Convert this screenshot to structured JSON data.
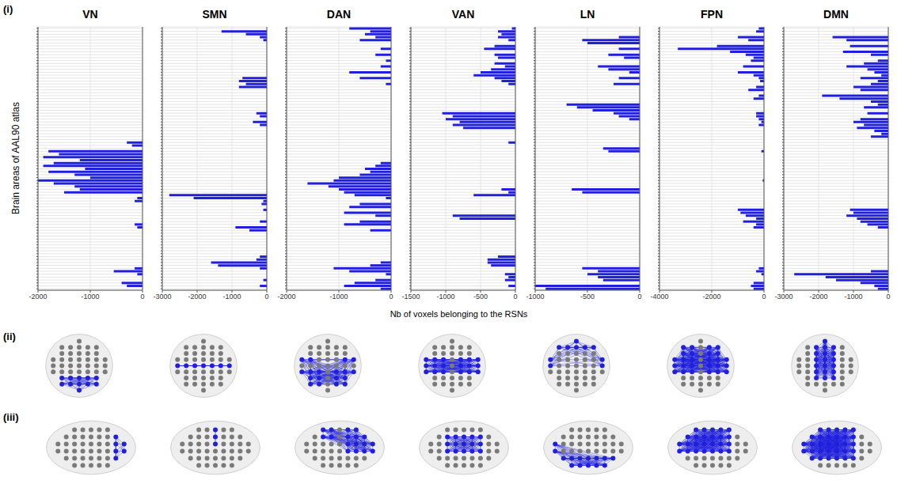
{
  "panel_labels": [
    "(i)",
    "(ii)",
    "(iii)"
  ],
  "chart_data": [
    {
      "type": "bar",
      "orientation": "horizontal",
      "title": "VN",
      "ylabel": "Brain areas of AAL90 atlas",
      "color": "#1f1fdd",
      "grid": true,
      "tick_labels": "x",
      "xlim": [
        -2000,
        0
      ],
      "xticks": [
        -2000,
        -1000,
        0
      ],
      "categories": [
        null,
        null,
        null,
        null,
        null,
        null,
        null,
        null,
        null,
        null,
        null,
        null,
        null,
        null,
        null,
        null,
        null,
        null,
        null,
        null,
        null,
        null,
        null,
        null,
        null,
        null,
        null,
        null,
        null,
        null,
        null,
        null,
        null,
        null,
        null,
        null,
        null,
        null,
        null,
        null,
        null,
        null,
        null,
        null,
        null,
        null,
        null,
        null,
        null,
        null,
        null,
        null,
        null,
        null,
        null,
        null,
        null,
        null,
        null,
        null,
        null,
        null,
        null,
        null,
        null,
        null,
        null,
        null,
        null,
        null,
        null,
        null,
        null,
        null,
        null,
        null,
        null,
        null,
        null,
        null,
        null,
        null,
        null,
        null,
        null,
        null,
        null,
        null,
        null,
        null
      ],
      "values": [
        0,
        0,
        0,
        0,
        0,
        0,
        0,
        0,
        0,
        0,
        0,
        0,
        0,
        0,
        0,
        0,
        0,
        0,
        0,
        0,
        0,
        0,
        0,
        0,
        0,
        0,
        0,
        0,
        0,
        0,
        0,
        0,
        0,
        0,
        0,
        0,
        0,
        0,
        0,
        -300,
        -200,
        0,
        -1800,
        -1600,
        -1900,
        -1200,
        -1700,
        -1900,
        -1100,
        -1800,
        -1300,
        -1000,
        -2000,
        -1700,
        -1300,
        -1200,
        -1500,
        0,
        -100,
        -150,
        0,
        0,
        0,
        0,
        0,
        0,
        0,
        -150,
        -100,
        0,
        0,
        0,
        0,
        0,
        0,
        0,
        0,
        0,
        0,
        0,
        0,
        0,
        -150,
        -550,
        -100,
        0,
        0,
        -400,
        -300,
        0
      ]
    },
    {
      "type": "bar",
      "orientation": "horizontal",
      "title": "SMN",
      "color": "#1f1fdd",
      "grid": true,
      "tick_labels": "x",
      "xlim": [
        -3000,
        0
      ],
      "xticks": [
        -3000,
        -2000,
        -1000,
        0
      ],
      "categories": [
        null,
        null,
        null,
        null,
        null,
        null,
        null,
        null,
        null,
        null,
        null,
        null,
        null,
        null,
        null,
        null,
        null,
        null,
        null,
        null,
        null,
        null,
        null,
        null,
        null,
        null,
        null,
        null,
        null,
        null,
        null,
        null,
        null,
        null,
        null,
        null,
        null,
        null,
        null,
        null,
        null,
        null,
        null,
        null,
        null,
        null,
        null,
        null,
        null,
        null,
        null,
        null,
        null,
        null,
        null,
        null,
        null,
        null,
        null,
        null,
        null,
        null,
        null,
        null,
        null,
        null,
        null,
        null,
        null,
        null,
        null,
        null,
        null,
        null,
        null,
        null,
        null,
        null,
        null,
        null,
        null,
        null,
        null,
        null,
        null,
        null,
        null,
        null,
        null,
        null
      ],
      "values": [
        0,
        -1300,
        -600,
        -200,
        -100,
        0,
        0,
        0,
        0,
        0,
        0,
        0,
        0,
        0,
        0,
        0,
        0,
        -700,
        -800,
        -600,
        -800,
        0,
        0,
        0,
        0,
        0,
        0,
        0,
        0,
        -300,
        -200,
        0,
        -400,
        -200,
        0,
        0,
        0,
        0,
        0,
        0,
        0,
        0,
        0,
        0,
        0,
        0,
        0,
        0,
        0,
        0,
        0,
        0,
        0,
        0,
        0,
        0,
        0,
        -2800,
        -2100,
        -100,
        -150,
        0,
        -100,
        0,
        0,
        0,
        -200,
        0,
        -900,
        -500,
        0,
        0,
        0,
        0,
        0,
        0,
        0,
        0,
        -200,
        -300,
        -1600,
        -1400,
        -200,
        0,
        0,
        0,
        -100,
        0,
        -200,
        0
      ]
    },
    {
      "type": "bar",
      "orientation": "horizontal",
      "title": "DAN",
      "color": "#1f1fdd",
      "grid": true,
      "tick_labels": "x",
      "xlim": [
        -2000,
        0
      ],
      "xticks": [
        -2000,
        -1000,
        0
      ],
      "categories": [
        null,
        null,
        null,
        null,
        null,
        null,
        null,
        null,
        null,
        null,
        null,
        null,
        null,
        null,
        null,
        null,
        null,
        null,
        null,
        null,
        null,
        null,
        null,
        null,
        null,
        null,
        null,
        null,
        null,
        null,
        null,
        null,
        null,
        null,
        null,
        null,
        null,
        null,
        null,
        null,
        null,
        null,
        null,
        null,
        null,
        null,
        null,
        null,
        null,
        null,
        null,
        null,
        null,
        null,
        null,
        null,
        null,
        null,
        null,
        null,
        null,
        null,
        null,
        null,
        null,
        null,
        null,
        null,
        null,
        null,
        null,
        null,
        null,
        null,
        null,
        null,
        null,
        null,
        null,
        null,
        null,
        null,
        null,
        null,
        null,
        null,
        null,
        null,
        null,
        null
      ],
      "values": [
        -800,
        -400,
        -500,
        -300,
        -600,
        0,
        0,
        -200,
        0,
        -300,
        0,
        -100,
        0,
        -200,
        0,
        -800,
        0,
        -600,
        0,
        -100,
        0,
        0,
        0,
        0,
        0,
        0,
        0,
        0,
        0,
        0,
        0,
        0,
        0,
        0,
        0,
        0,
        0,
        0,
        0,
        0,
        0,
        0,
        0,
        0,
        0,
        0,
        -200,
        -300,
        -500,
        -400,
        -600,
        -1000,
        -1100,
        -1600,
        -1200,
        -1000,
        -900,
        -700,
        -100,
        0,
        -600,
        -800,
        0,
        -900,
        -300,
        0,
        -600,
        -900,
        0,
        -400,
        0,
        0,
        0,
        0,
        0,
        0,
        0,
        0,
        0,
        0,
        -200,
        -400,
        -1100,
        -800,
        -100,
        0,
        -300,
        -700,
        -900,
        -200
      ]
    },
    {
      "type": "bar",
      "orientation": "horizontal",
      "title": "VAN",
      "xlabel": "Nb of voxels belonging to the RSNs",
      "color": "#1f1fdd",
      "grid": true,
      "tick_labels": "x",
      "xlim": [
        -1500,
        0
      ],
      "xticks": [
        -1500,
        -1000,
        -500,
        0
      ],
      "categories": [
        null,
        null,
        null,
        null,
        null,
        null,
        null,
        null,
        null,
        null,
        null,
        null,
        null,
        null,
        null,
        null,
        null,
        null,
        null,
        null,
        null,
        null,
        null,
        null,
        null,
        null,
        null,
        null,
        null,
        null,
        null,
        null,
        null,
        null,
        null,
        null,
        null,
        null,
        null,
        null,
        null,
        null,
        null,
        null,
        null,
        null,
        null,
        null,
        null,
        null,
        null,
        null,
        null,
        null,
        null,
        null,
        null,
        null,
        null,
        null,
        null,
        null,
        null,
        null,
        null,
        null,
        null,
        null,
        null,
        null,
        null,
        null,
        null,
        null,
        null,
        null,
        null,
        null,
        null,
        null,
        null,
        null,
        null,
        null,
        null,
        null,
        null,
        null,
        null,
        null
      ],
      "values": [
        -50,
        -250,
        -200,
        -250,
        -100,
        0,
        -300,
        -450,
        0,
        -300,
        -250,
        0,
        -300,
        -150,
        -350,
        -500,
        -600,
        -300,
        -200,
        -100,
        0,
        0,
        0,
        0,
        0,
        0,
        0,
        0,
        0,
        -1050,
        -900,
        -1000,
        -800,
        -900,
        -750,
        0,
        0,
        0,
        0,
        -100,
        0,
        0,
        0,
        0,
        0,
        0,
        0,
        0,
        0,
        0,
        0,
        0,
        0,
        0,
        0,
        -200,
        -100,
        -600,
        0,
        0,
        0,
        0,
        0,
        0,
        -900,
        -800,
        0,
        0,
        0,
        0,
        0,
        0,
        0,
        0,
        0,
        0,
        0,
        0,
        -250,
        -400,
        -400,
        -350,
        0,
        0,
        -150,
        -100,
        -150,
        0,
        -100,
        0
      ]
    },
    {
      "type": "bar",
      "orientation": "horizontal",
      "title": "LN",
      "color": "#1f1fdd",
      "grid": true,
      "tick_labels": "x",
      "xlim": [
        -1000,
        0
      ],
      "xticks": [
        -1000,
        -500,
        0
      ],
      "categories": [
        null,
        null,
        null,
        null,
        null,
        null,
        null,
        null,
        null,
        null,
        null,
        null,
        null,
        null,
        null,
        null,
        null,
        null,
        null,
        null,
        null,
        null,
        null,
        null,
        null,
        null,
        null,
        null,
        null,
        null,
        null,
        null,
        null,
        null,
        null,
        null,
        null,
        null,
        null,
        null,
        null,
        null,
        null,
        null,
        null,
        null,
        null,
        null,
        null,
        null,
        null,
        null,
        null,
        null,
        null,
        null,
        null,
        null,
        null,
        null,
        null,
        null,
        null,
        null,
        null,
        null,
        null,
        null,
        null,
        null,
        null,
        null,
        null,
        null,
        null,
        null,
        null,
        null,
        null,
        null,
        null,
        null,
        null,
        null,
        null,
        null,
        null,
        null,
        null,
        null
      ],
      "values": [
        0,
        0,
        0,
        -200,
        -550,
        -500,
        0,
        -200,
        0,
        -300,
        -150,
        0,
        0,
        -400,
        -300,
        -100,
        0,
        -200,
        0,
        -250,
        0,
        0,
        0,
        0,
        0,
        0,
        -700,
        -600,
        -450,
        -250,
        -200,
        -100,
        0,
        0,
        0,
        0,
        0,
        0,
        0,
        0,
        0,
        -350,
        -300,
        0,
        0,
        0,
        0,
        0,
        0,
        0,
        0,
        0,
        0,
        0,
        0,
        -650,
        -550,
        0,
        0,
        0,
        0,
        0,
        0,
        0,
        0,
        0,
        0,
        0,
        0,
        0,
        0,
        0,
        0,
        0,
        0,
        0,
        0,
        0,
        0,
        0,
        0,
        0,
        -550,
        -400,
        -500,
        -400,
        -350,
        0,
        -1000,
        -900
      ]
    },
    {
      "type": "bar",
      "orientation": "horizontal",
      "title": "FPN",
      "color": "#1f1fdd",
      "grid": true,
      "tick_labels": "x",
      "xlim": [
        -4000,
        0
      ],
      "xticks": [
        -4000,
        -2000,
        0
      ],
      "categories": [
        null,
        null,
        null,
        null,
        null,
        null,
        null,
        null,
        null,
        null,
        null,
        null,
        null,
        null,
        null,
        null,
        null,
        null,
        null,
        null,
        null,
        null,
        null,
        null,
        null,
        null,
        null,
        null,
        null,
        null,
        null,
        null,
        null,
        null,
        null,
        null,
        null,
        null,
        null,
        null,
        null,
        null,
        null,
        null,
        null,
        null,
        null,
        null,
        null,
        null,
        null,
        null,
        null,
        null,
        null,
        null,
        null,
        null,
        null,
        null,
        null,
        null,
        null,
        null,
        null,
        null,
        null,
        null,
        null,
        null,
        null,
        null,
        null,
        null,
        null,
        null,
        null,
        null,
        null,
        null,
        null,
        null,
        null,
        null,
        null,
        null,
        null,
        null,
        null,
        null
      ],
      "values": [
        -200,
        -300,
        0,
        -1000,
        -600,
        0,
        -1800,
        -3300,
        -1300,
        -700,
        -400,
        -500,
        0,
        -800,
        0,
        -1000,
        -400,
        -200,
        -150,
        0,
        -300,
        -600,
        0,
        -200,
        -400,
        0,
        0,
        0,
        0,
        -300,
        -300,
        -200,
        -100,
        -200,
        0,
        0,
        0,
        0,
        0,
        0,
        0,
        0,
        -100,
        0,
        0,
        0,
        0,
        0,
        0,
        0,
        0,
        0,
        -50,
        0,
        0,
        0,
        0,
        0,
        0,
        0,
        0,
        0,
        -1000,
        -900,
        -700,
        -300,
        -800,
        -300,
        -400,
        0,
        0,
        0,
        0,
        0,
        0,
        0,
        0,
        0,
        0,
        0,
        0,
        0,
        -200,
        -300,
        -100,
        0,
        0,
        -400,
        -500,
        -400
      ]
    },
    {
      "type": "bar",
      "orientation": "horizontal",
      "title": "DMN",
      "color": "#1f1fdd",
      "grid": true,
      "tick_labels": "x",
      "xlim": [
        -3000,
        0
      ],
      "xticks": [
        -3000,
        -2000,
        -1000,
        0
      ],
      "categories": [
        null,
        null,
        null,
        null,
        null,
        null,
        null,
        null,
        null,
        null,
        null,
        null,
        null,
        null,
        null,
        null,
        null,
        null,
        null,
        null,
        null,
        null,
        null,
        null,
        null,
        null,
        null,
        null,
        null,
        null,
        null,
        null,
        null,
        null,
        null,
        null,
        null,
        null,
        null,
        null,
        null,
        null,
        null,
        null,
        null,
        null,
        null,
        null,
        null,
        null,
        null,
        null,
        null,
        null,
        null,
        null,
        null,
        null,
        null,
        null,
        null,
        null,
        null,
        null,
        null,
        null,
        null,
        null,
        null,
        null,
        null,
        null,
        null,
        null,
        null,
        null,
        null,
        null,
        null,
        null,
        null,
        null,
        null,
        null,
        null,
        null,
        null,
        null,
        null,
        null
      ],
      "values": [
        0,
        0,
        0,
        -1600,
        -1200,
        0,
        -1100,
        0,
        -1300,
        -500,
        0,
        -300,
        -700,
        -1200,
        -600,
        -400,
        -200,
        -800,
        -300,
        -500,
        -1000,
        -800,
        0,
        -1900,
        -1400,
        -500,
        -300,
        -700,
        0,
        -600,
        0,
        -800,
        -1000,
        -700,
        -900,
        -400,
        -200,
        -500,
        0,
        0,
        0,
        0,
        0,
        0,
        0,
        0,
        0,
        0,
        0,
        0,
        0,
        0,
        0,
        0,
        0,
        0,
        0,
        0,
        0,
        0,
        0,
        0,
        -1100,
        -1000,
        -1200,
        -900,
        -800,
        -600,
        -300,
        0,
        0,
        0,
        0,
        0,
        0,
        0,
        0,
        0,
        0,
        0,
        0,
        0,
        0,
        -500,
        -2700,
        -1800,
        -1500,
        -800,
        -400,
        -300
      ]
    }
  ]
}
